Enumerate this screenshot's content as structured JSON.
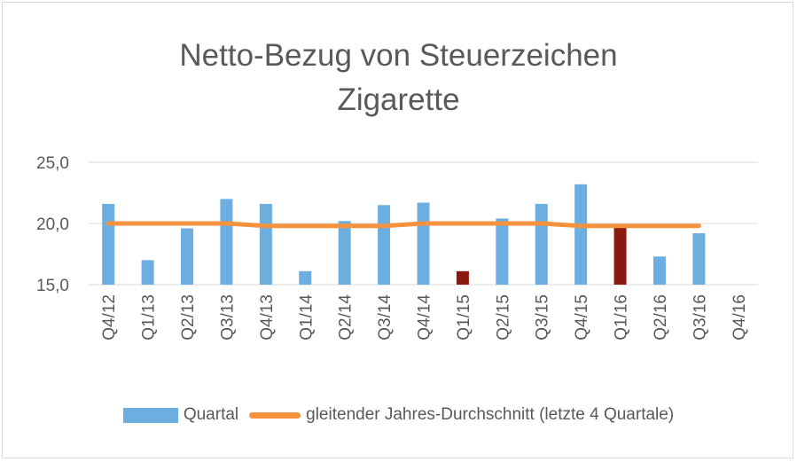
{
  "chart_data": {
    "type": "bar",
    "title_lines": [
      "Netto-Bezug von Steuerzeichen",
      "Zigarette"
    ],
    "categories": [
      "Q4/12",
      "Q1/13",
      "Q2/13",
      "Q3/13",
      "Q4/13",
      "Q1/14",
      "Q2/14",
      "Q3/14",
      "Q4/14",
      "Q1/15",
      "Q2/15",
      "Q3/15",
      "Q4/15",
      "Q1/16",
      "Q2/16",
      "Q3/16",
      "Q4/16"
    ],
    "ylim": [
      15.0,
      25.0
    ],
    "yticks": [
      "15,0",
      "20,0",
      "25,0"
    ],
    "ytick_values": [
      15,
      20,
      25
    ],
    "grid": true,
    "legend_position": "bottom",
    "series": [
      {
        "name": "Quartal",
        "type": "bar",
        "color": "#6caee0",
        "highlight_color": "#8b1a0e",
        "highlight_indices": [
          9,
          13
        ],
        "values": [
          21.6,
          17.0,
          19.6,
          22.0,
          21.6,
          16.1,
          20.2,
          21.5,
          21.7,
          16.1,
          20.4,
          21.6,
          23.2,
          19.8,
          17.3,
          19.2,
          null
        ]
      },
      {
        "name": "gleitender Jahres-Durchschnitt (letzte 4 Quartale)",
        "type": "line",
        "color": "#f5923e",
        "values": [
          20.0,
          20.0,
          20.0,
          20.0,
          19.8,
          19.8,
          19.8,
          19.8,
          20.0,
          20.0,
          20.0,
          20.0,
          19.8,
          19.8,
          19.8,
          19.8,
          null
        ]
      }
    ]
  }
}
